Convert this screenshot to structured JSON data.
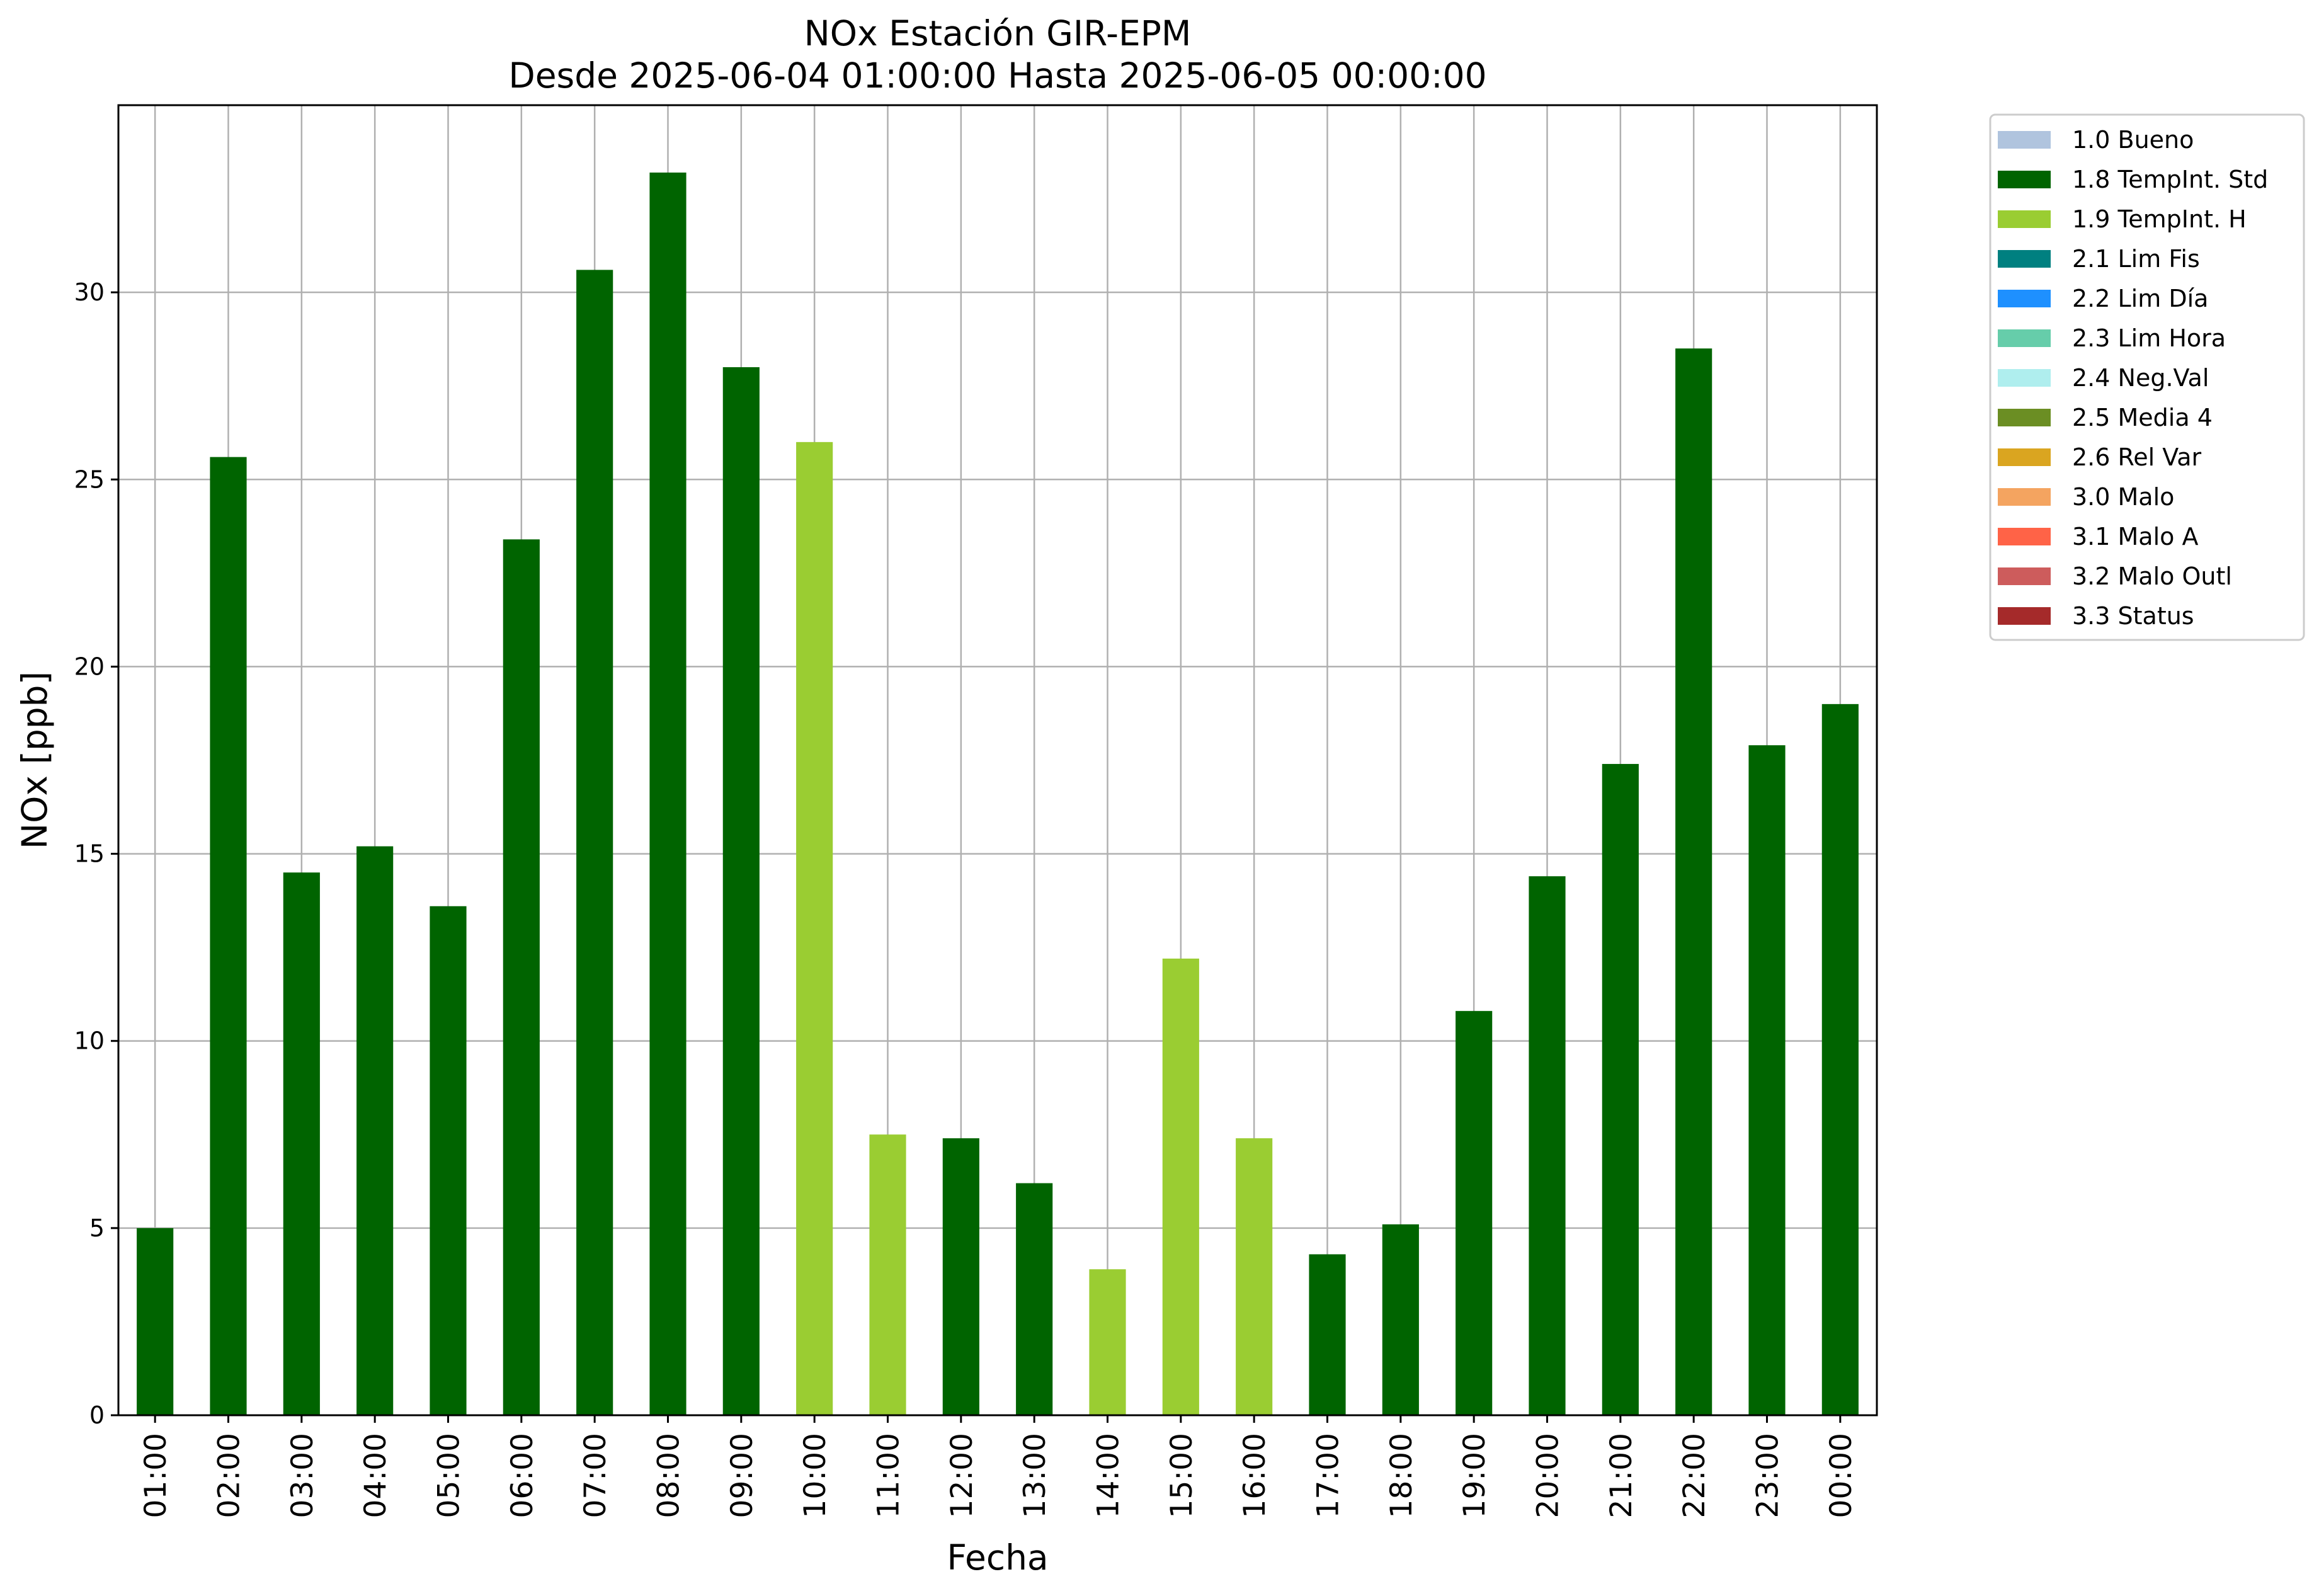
{
  "chart_data": {
    "type": "bar",
    "title": "NOx Estación GIR-EPM",
    "subtitle": "Desde 2025-06-04 01:00:00 Hasta 2025-06-05 00:00:00",
    "xlabel": "Fecha",
    "ylabel": "NOx [ppb]",
    "ylim": [
      0,
      35
    ],
    "yticks": [
      0,
      5,
      10,
      15,
      20,
      25,
      30
    ],
    "grid": true,
    "legend_position": "outside-right-top",
    "categories": [
      "01:00",
      "02:00",
      "03:00",
      "04:00",
      "05:00",
      "06:00",
      "07:00",
      "08:00",
      "09:00",
      "10:00",
      "11:00",
      "12:00",
      "13:00",
      "14:00",
      "15:00",
      "16:00",
      "17:00",
      "18:00",
      "19:00",
      "20:00",
      "21:00",
      "22:00",
      "23:00",
      "00:00"
    ],
    "values": [
      5.0,
      25.6,
      14.5,
      15.2,
      13.6,
      23.4,
      30.6,
      33.2,
      28.0,
      26.0,
      7.5,
      7.4,
      6.2,
      3.9,
      12.2,
      7.4,
      4.3,
      5.1,
      10.8,
      14.4,
      17.4,
      28.5,
      17.9,
      19.0
    ],
    "flags": [
      "1.8",
      "1.8",
      "1.8",
      "1.8",
      "1.8",
      "1.8",
      "1.8",
      "1.8",
      "1.8",
      "1.9",
      "1.9",
      "1.8",
      "1.8",
      "1.9",
      "1.9",
      "1.9",
      "1.8",
      "1.8",
      "1.8",
      "1.8",
      "1.8",
      "1.8",
      "1.8",
      "1.8"
    ],
    "legend": [
      {
        "code": "1.0",
        "label": "1.0 Bueno",
        "color": "#b0c4de"
      },
      {
        "code": "1.8",
        "label": "1.8 TempInt. Std",
        "color": "#006400"
      },
      {
        "code": "1.9",
        "label": "1.9 TempInt. H",
        "color": "#9acd32"
      },
      {
        "code": "2.1",
        "label": "2.1 Lim Fis",
        "color": "#008080"
      },
      {
        "code": "2.2",
        "label": "2.2 Lim Día",
        "color": "#1e90ff"
      },
      {
        "code": "2.3",
        "label": "2.3 Lim Hora",
        "color": "#66cdaa"
      },
      {
        "code": "2.4",
        "label": "2.4 Neg.Val",
        "color": "#afeeee"
      },
      {
        "code": "2.5",
        "label": "2.5 Media 4",
        "color": "#6b8e23"
      },
      {
        "code": "2.6",
        "label": "2.6 Rel Var",
        "color": "#daa520"
      },
      {
        "code": "3.0",
        "label": "3.0 Malo",
        "color": "#f4a460"
      },
      {
        "code": "3.1",
        "label": "3.1 Malo A",
        "color": "#ff6347"
      },
      {
        "code": "3.2",
        "label": "3.2 Malo Outl",
        "color": "#cd5c5c"
      },
      {
        "code": "3.3",
        "label": "3.3 Status",
        "color": "#a52a2a"
      }
    ]
  }
}
